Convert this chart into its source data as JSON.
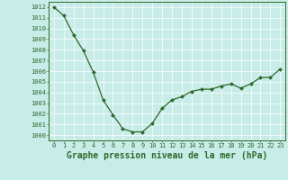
{
  "x": [
    0,
    1,
    2,
    3,
    4,
    5,
    6,
    7,
    8,
    9,
    10,
    11,
    12,
    13,
    14,
    15,
    16,
    17,
    18,
    19,
    20,
    21,
    22,
    23
  ],
  "y": [
    1012.0,
    1011.2,
    1009.4,
    1007.9,
    1005.9,
    1003.3,
    1001.9,
    1000.6,
    1000.3,
    1000.3,
    1001.1,
    1002.5,
    1003.3,
    1003.6,
    1004.1,
    1004.3,
    1004.3,
    1004.6,
    1004.8,
    1004.4,
    1004.8,
    1005.4,
    1005.4,
    1006.2
  ],
  "ylim": [
    999.5,
    1012.5
  ],
  "yticks": [
    1000,
    1001,
    1002,
    1003,
    1004,
    1005,
    1006,
    1007,
    1008,
    1009,
    1010,
    1011,
    1012
  ],
  "xtick_labels": [
    "0",
    "1",
    "2",
    "3",
    "4",
    "5",
    "6",
    "7",
    "8",
    "9",
    "10",
    "11",
    "12",
    "13",
    "14",
    "15",
    "16",
    "17",
    "18",
    "19",
    "20",
    "21",
    "22",
    "23"
  ],
  "xlabel": "Graphe pression niveau de la mer (hPa)",
  "line_color": "#2d6a2d",
  "marker": "D",
  "marker_size": 2.0,
  "bg_color": "#c8ece8",
  "grid_color": "#ffffff",
  "axis_color": "#2d6a2d",
  "tick_color": "#2d6a2d",
  "tick_fontsize": 5.0,
  "xlabel_fontsize": 7.0,
  "linewidth": 0.9
}
